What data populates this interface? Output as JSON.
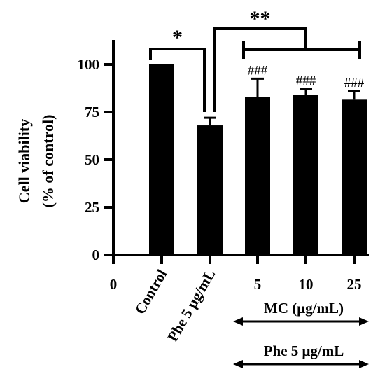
{
  "chart_data": {
    "type": "bar",
    "title": "",
    "ylabel_line1": "Cell viability",
    "ylabel_line2": "(% of control)",
    "xlabel": "",
    "ylim": [
      0,
      100
    ],
    "yticks": [
      0,
      25,
      50,
      75,
      100
    ],
    "x_origin_label": "0",
    "categories": [
      "Control",
      "Phe 5 μg/mL",
      "5",
      "10",
      "25"
    ],
    "values": [
      100,
      68,
      83,
      84,
      81.5
    ],
    "errors": [
      0,
      4,
      9.5,
      3,
      4.5
    ],
    "bar_annotations": [
      "",
      "",
      "###",
      "###",
      "###"
    ],
    "significance": [
      {
        "label": "*",
        "from": 0,
        "to": 1
      },
      {
        "label": "**",
        "from": 1,
        "to": [
          2,
          4
        ]
      }
    ],
    "group_labels": [
      {
        "label": "MC (μg/mL)",
        "span": [
          2,
          4
        ]
      },
      {
        "label": "Phe 5 μg/mL",
        "span": [
          2,
          4
        ]
      }
    ],
    "colors": {
      "bar": "#000000",
      "axis": "#000000"
    }
  }
}
